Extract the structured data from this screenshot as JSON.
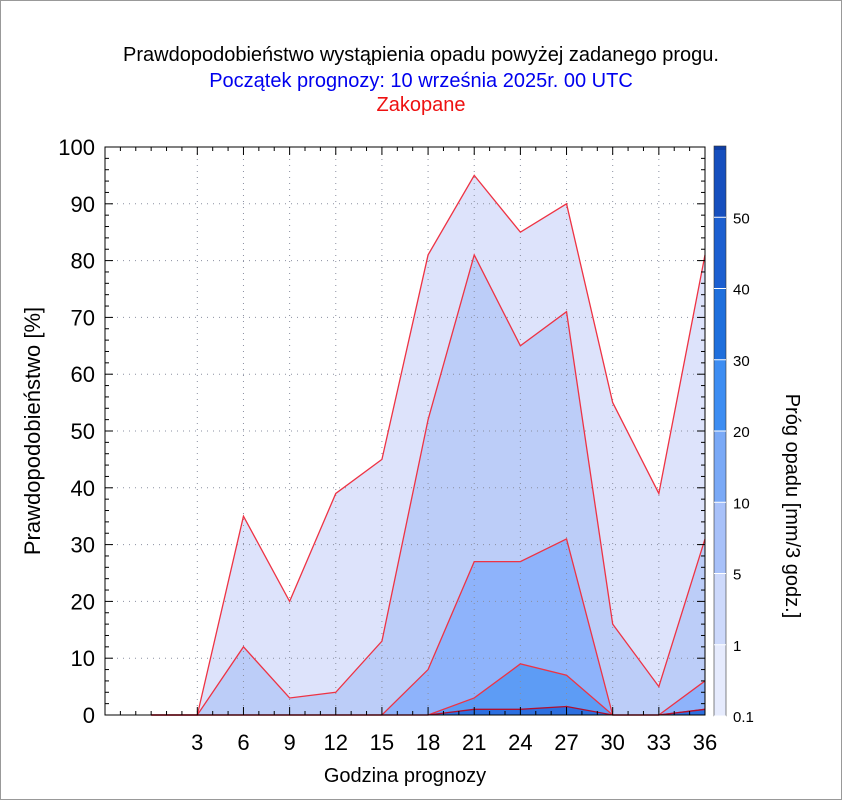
{
  "title": {
    "line1": "Prawdopodobieństwo wystąpienia opadu powyżej zadanego progu.",
    "line2": "Początek prognozy: 10 września 2025r. 00 UTC",
    "line3": "Zakopane"
  },
  "colors": {
    "title1": "#000000",
    "title2": "#0000ee",
    "title3": "#ee1111",
    "edge": "#ee3344",
    "bands": [
      "#dde3fb",
      "#bccdf8",
      "#8eb3fb",
      "#5d9cf5",
      "#2c6fe0",
      "#1f5fd6"
    ]
  },
  "chart_data": {
    "type": "area",
    "xlabel": "Godzina prognozy",
    "ylabel": "Prawdopodobieństwo [%]",
    "x": [
      0,
      3,
      6,
      9,
      12,
      15,
      18,
      21,
      24,
      27,
      30,
      33,
      36
    ],
    "xticks": [
      "3",
      "6",
      "9",
      "12",
      "15",
      "18",
      "21",
      "24",
      "27",
      "30",
      "33",
      "36"
    ],
    "xlim": [
      -3,
      36
    ],
    "ylim": [
      0,
      100
    ],
    "yticks": [
      "0",
      "10",
      "20",
      "30",
      "40",
      "50",
      "60",
      "70",
      "80",
      "90",
      "100"
    ],
    "grid": true,
    "series": [
      {
        "name": "0.1",
        "values": [
          0,
          0,
          35,
          20,
          39,
          45,
          81,
          95,
          85,
          90,
          55,
          39,
          81
        ]
      },
      {
        "name": "1",
        "values": [
          0,
          0,
          12,
          3,
          4,
          13,
          52,
          81,
          65,
          71,
          16,
          5,
          31
        ]
      },
      {
        "name": "5",
        "values": [
          0,
          0,
          0,
          0,
          0,
          0,
          8,
          27,
          27,
          31,
          0,
          0,
          6
        ]
      },
      {
        "name": "10",
        "values": [
          0,
          0,
          0,
          0,
          0,
          0,
          0,
          3,
          9,
          7,
          0,
          0,
          1
        ]
      },
      {
        "name": "20",
        "values": [
          0,
          0,
          0,
          0,
          0,
          0,
          0,
          1,
          1,
          1.5,
          0,
          0,
          1
        ]
      }
    ],
    "colorbar": {
      "label": "Próg opadu [mm/3 godz.]",
      "ticks": [
        "0.1",
        "1",
        "5",
        "10",
        "20",
        "30",
        "40",
        "50"
      ],
      "colors": [
        "#e6ebfd",
        "#cdd9fb",
        "#a8c1f9",
        "#7aa9f6",
        "#3d8df2",
        "#1f6fdc",
        "#1c5fd0",
        "#164fbe",
        "#0f3ea4"
      ]
    }
  }
}
